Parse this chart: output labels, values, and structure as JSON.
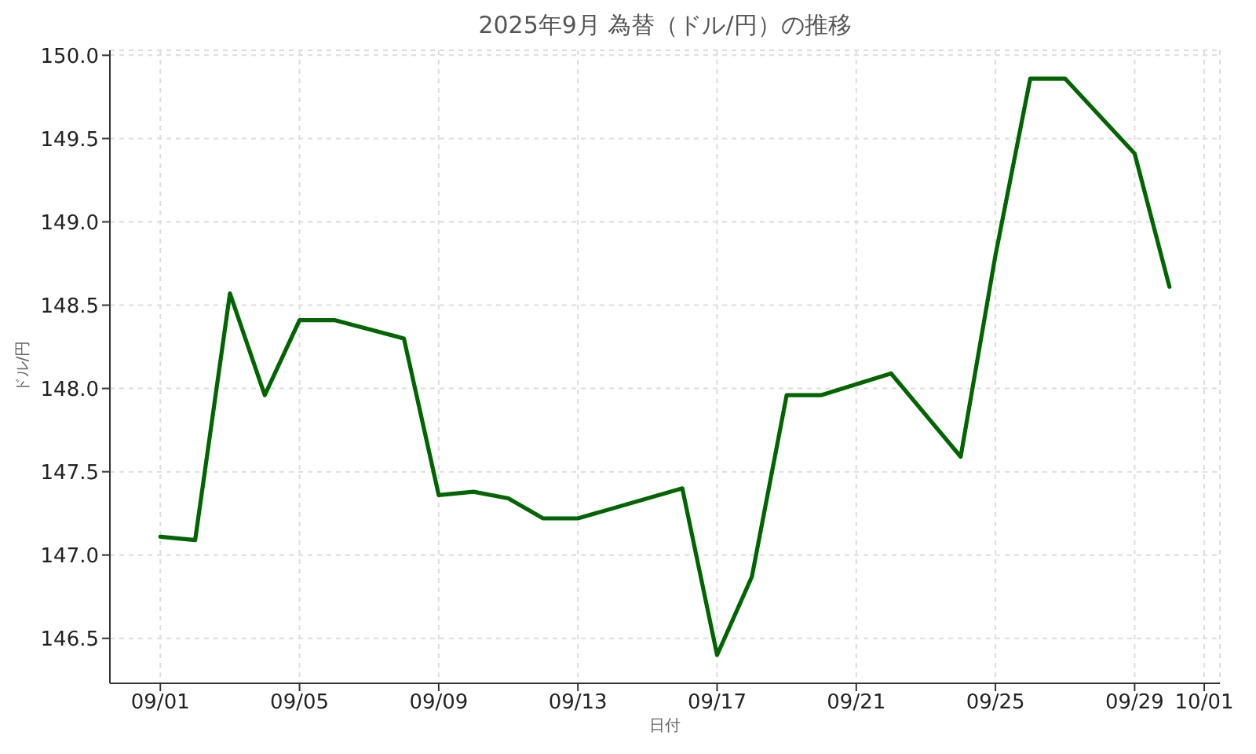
{
  "chart_data": {
    "type": "line",
    "title": "2025年9月 為替（ドル/円）の推移",
    "xlabel": "日付",
    "ylabel": "ドル/円",
    "x": [
      "2025-09-01",
      "2025-09-02",
      "2025-09-03",
      "2025-09-04",
      "2025-09-05",
      "2025-09-06",
      "2025-09-08",
      "2025-09-09",
      "2025-09-10",
      "2025-09-11",
      "2025-09-12",
      "2025-09-13",
      "2025-09-16",
      "2025-09-17",
      "2025-09-18",
      "2025-09-19",
      "2025-09-20",
      "2025-09-22",
      "2025-09-24",
      "2025-09-25",
      "2025-09-26",
      "2025-09-27",
      "2025-09-29",
      "2025-09-30"
    ],
    "series": [
      {
        "color": "#006400",
        "values": [
          147.11,
          147.09,
          148.57,
          147.96,
          148.41,
          148.41,
          148.3,
          147.36,
          147.38,
          147.34,
          147.22,
          147.22,
          147.4,
          146.4,
          146.87,
          147.96,
          147.96,
          148.09,
          147.59,
          148.8,
          149.86,
          149.86,
          149.41,
          148.61
        ]
      }
    ],
    "xlim": [
      "2025-08-30T13:12",
      "2025-10-01T10:48"
    ],
    "xticks": [
      {
        "value": "2025-09-01",
        "label": "09/01"
      },
      {
        "value": "2025-09-05",
        "label": "09/05"
      },
      {
        "value": "2025-09-09",
        "label": "09/09"
      },
      {
        "value": "2025-09-13",
        "label": "09/13"
      },
      {
        "value": "2025-09-17",
        "label": "09/17"
      },
      {
        "value": "2025-09-21",
        "label": "09/21"
      },
      {
        "value": "2025-09-25",
        "label": "09/25"
      },
      {
        "value": "2025-09-29",
        "label": "09/29"
      },
      {
        "value": "2025-10-01",
        "label": "10/01"
      }
    ],
    "ylim": [
      146.23,
      150.03
    ],
    "yticks": [
      146.5,
      {
        "value": 147,
        "label": "147.0"
      },
      147.5,
      {
        "value": 148,
        "label": "148.0"
      },
      148.5,
      {
        "value": 149,
        "label": "149.0"
      },
      149.5,
      {
        "value": 150,
        "label": "150.0"
      }
    ],
    "grid": true,
    "line_style": "solid"
  }
}
